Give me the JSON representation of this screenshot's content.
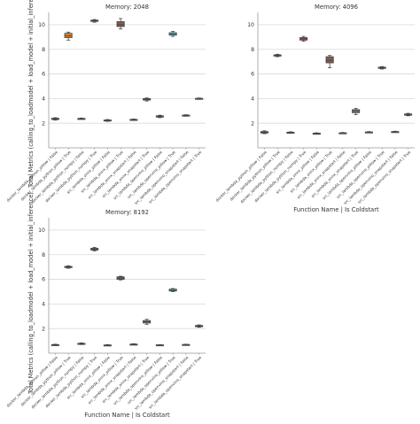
{
  "figure": {
    "ylabel": "Total Metrics (calling_to_loadmodel + load_model + initial_inference)",
    "xlabel": "Function Name | Is Coldstart"
  },
  "chart_data": [
    {
      "type": "box",
      "title": "Memory: 2048",
      "ylabel": "Total Metrics (calling_to_loadmodel + load_model + initial_inference)",
      "xlabel": "",
      "ylim": [
        0,
        11
      ],
      "yticks": [
        2,
        4,
        6,
        8,
        10
      ],
      "grid": true,
      "categories": [
        "docker_lambda_python_pillow | False",
        "docker_lambda_python_pillow | True",
        "docker_lambda_python_numpy | False",
        "docker_lambda_python_numpy | True",
        "src_lambda_onnx_pillow | False",
        "src_lambda_onnx_pillow | True",
        "src_lambda_onnx_snapstart | False",
        "src_lambda_onnx_snapstart | True",
        "src_lambda_openvino_pillow | False",
        "src_lambda_openvino_pillow | True",
        "src_lambda_openvino_snapstart | False",
        "src_lambda_openvino_snapstart | True"
      ],
      "colors": [
        "#3274a1",
        "#e1812c",
        "#3a923a",
        "#c03d3e",
        "#9372b2",
        "#845b53",
        "#d684bd",
        "#7f7f7f",
        "#a9aa35",
        "#2ed0d9",
        "#4a9a8a",
        "#8a7fd0"
      ],
      "boxes": [
        {
          "min": 2.25,
          "q1": 2.3,
          "median": 2.35,
          "q3": 2.4,
          "max": 2.45
        },
        {
          "min": 8.75,
          "q1": 8.95,
          "median": 9.1,
          "q3": 9.3,
          "max": 9.4
        },
        {
          "min": 2.32,
          "q1": 2.35,
          "median": 2.37,
          "q3": 2.39,
          "max": 2.42
        },
        {
          "min": 10.2,
          "q1": 10.27,
          "median": 10.32,
          "q3": 10.37,
          "max": 10.42
        },
        {
          "min": 2.15,
          "q1": 2.2,
          "median": 2.23,
          "q3": 2.26,
          "max": 2.3
        },
        {
          "min": 9.65,
          "q1": 9.85,
          "median": 10.0,
          "q3": 10.25,
          "max": 10.5
        },
        {
          "min": 2.22,
          "q1": 2.25,
          "median": 2.28,
          "q3": 2.31,
          "max": 2.34
        },
        {
          "min": 3.8,
          "q1": 3.88,
          "median": 3.94,
          "q3": 4.0,
          "max": 4.05
        },
        {
          "min": 2.45,
          "q1": 2.5,
          "median": 2.55,
          "q3": 2.6,
          "max": 2.65
        },
        {
          "min": 9.05,
          "q1": 9.15,
          "median": 9.25,
          "q3": 9.35,
          "max": 9.45
        },
        {
          "min": 2.57,
          "q1": 2.6,
          "median": 2.63,
          "q3": 2.66,
          "max": 2.69
        },
        {
          "min": 3.95,
          "q1": 3.98,
          "median": 4.0,
          "q3": 4.02,
          "max": 4.05
        }
      ]
    },
    {
      "type": "box",
      "title": "Memory: 4096",
      "ylabel": "",
      "xlabel": "Function Name | Is Coldstart",
      "ylim": [
        0,
        11
      ],
      "yticks": [
        2,
        4,
        6,
        8,
        10
      ],
      "grid": true,
      "categories": [
        "docker_lambda_python_pillow | False",
        "docker_lambda_python_pillow | True",
        "docker_lambda_python_numpy | False",
        "docker_lambda_python_numpy | True",
        "src_lambda_onnx_pillow | False",
        "src_lambda_onnx_pillow | True",
        "src_lambda_onnx_snapstart | False",
        "src_lambda_onnx_snapstart | True",
        "src_lambda_openvino_pillow | False",
        "src_lambda_openvino_pillow | True",
        "src_lambda_openvino_snapstart | False",
        "src_lambda_openvino_snapstart | True"
      ],
      "colors": [
        "#3274a1",
        "#e1812c",
        "#3a923a",
        "#c03d3e",
        "#9372b2",
        "#845b53",
        "#d684bd",
        "#7f7f7f",
        "#a9aa35",
        "#2ed0d9",
        "#4a9a8a",
        "#8a7fd0"
      ],
      "boxes": [
        {
          "min": 1.15,
          "q1": 1.2,
          "median": 1.25,
          "q3": 1.32,
          "max": 1.38
        },
        {
          "min": 7.4,
          "q1": 7.45,
          "median": 7.5,
          "q3": 7.55,
          "max": 7.6
        },
        {
          "min": 1.2,
          "q1": 1.23,
          "median": 1.25,
          "q3": 1.27,
          "max": 1.3
        },
        {
          "min": 8.65,
          "q1": 8.75,
          "median": 8.85,
          "q3": 8.95,
          "max": 9.05
        },
        {
          "min": 1.1,
          "q1": 1.13,
          "median": 1.16,
          "q3": 1.19,
          "max": 1.22
        },
        {
          "min": 6.5,
          "q1": 6.9,
          "median": 7.1,
          "q3": 7.4,
          "max": 7.5
        },
        {
          "min": 1.15,
          "q1": 1.18,
          "median": 1.2,
          "q3": 1.22,
          "max": 1.25
        },
        {
          "min": 2.7,
          "q1": 2.85,
          "median": 3.0,
          "q3": 3.1,
          "max": 3.2
        },
        {
          "min": 1.22,
          "q1": 1.25,
          "median": 1.27,
          "q3": 1.29,
          "max": 1.32
        },
        {
          "min": 6.4,
          "q1": 6.45,
          "median": 6.5,
          "q3": 6.55,
          "max": 6.6
        },
        {
          "min": 1.25,
          "q1": 1.28,
          "median": 1.3,
          "q3": 1.32,
          "max": 1.35
        },
        {
          "min": 2.6,
          "q1": 2.65,
          "median": 2.7,
          "q3": 2.75,
          "max": 2.8
        }
      ]
    },
    {
      "type": "box",
      "title": "Memory: 8192",
      "ylabel": "Total Metrics (calling_to_loadmodel + load_model + initial_inference)",
      "xlabel": "Function Name | Is Coldstart",
      "ylim": [
        0,
        11
      ],
      "yticks": [
        2,
        4,
        6,
        8,
        10
      ],
      "grid": true,
      "categories": [
        "docker_lambda_python_pillow | False",
        "docker_lambda_python_pillow | True",
        "docker_lambda_python_numpy | False",
        "docker_lambda_python_numpy | True",
        "src_lambda_onnx_pillow | False",
        "src_lambda_onnx_pillow | True",
        "src_lambda_onnx_snapstart | False",
        "src_lambda_onnx_snapstart | True",
        "src_lambda_openvino_pillow | False",
        "src_lambda_openvino_pillow | True",
        "src_lambda_openvino_snapstart | False",
        "src_lambda_openvino_snapstart | True"
      ],
      "colors": [
        "#3274a1",
        "#e1812c",
        "#3a923a",
        "#c03d3e",
        "#9372b2",
        "#845b53",
        "#d684bd",
        "#7f7f7f",
        "#a9aa35",
        "#2ed0d9",
        "#4a9a8a",
        "#8a7fd0"
      ],
      "boxes": [
        {
          "min": 0.62,
          "q1": 0.65,
          "median": 0.68,
          "q3": 0.7,
          "max": 0.73
        },
        {
          "min": 6.9,
          "q1": 6.95,
          "median": 7.0,
          "q3": 7.05,
          "max": 7.1
        },
        {
          "min": 0.7,
          "q1": 0.74,
          "median": 0.77,
          "q3": 0.8,
          "max": 0.84
        },
        {
          "min": 8.3,
          "q1": 8.38,
          "median": 8.45,
          "q3": 8.52,
          "max": 8.6
        },
        {
          "min": 0.6,
          "q1": 0.63,
          "median": 0.65,
          "q3": 0.67,
          "max": 0.7
        },
        {
          "min": 5.95,
          "q1": 6.0,
          "median": 6.1,
          "q3": 6.2,
          "max": 6.25
        },
        {
          "min": 0.68,
          "q1": 0.7,
          "median": 0.72,
          "q3": 0.74,
          "max": 0.77
        },
        {
          "min": 2.35,
          "q1": 2.45,
          "median": 2.55,
          "q3": 2.65,
          "max": 2.75
        },
        {
          "min": 0.62,
          "q1": 0.64,
          "median": 0.66,
          "q3": 0.68,
          "max": 0.7
        },
        {
          "min": 5.0,
          "q1": 5.05,
          "median": 5.1,
          "q3": 5.2,
          "max": 5.25
        },
        {
          "min": 0.65,
          "q1": 0.67,
          "median": 0.69,
          "q3": 0.71,
          "max": 0.73
        },
        {
          "min": 2.1,
          "q1": 2.15,
          "median": 2.2,
          "q3": 2.25,
          "max": 2.3
        }
      ]
    }
  ]
}
